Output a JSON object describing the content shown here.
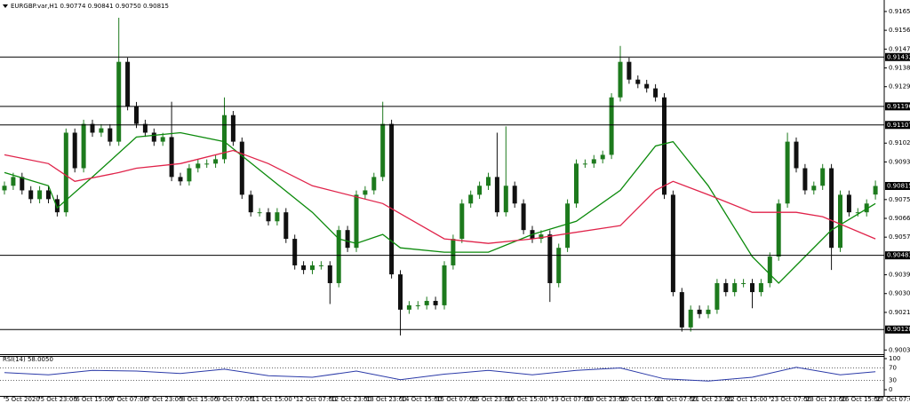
{
  "chart_data": {
    "type": "candlestick",
    "title": "EURGBP.var,H1 0.90774 0.90841 0.90750 0.90815",
    "open": [
      0.90794,
      0.90816,
      0.90858,
      0.90794,
      0.90752,
      0.90794,
      0.90752,
      0.90689,
      0.9107,
      0.909,
      0.91112,
      0.9107,
      0.91091,
      0.91027,
      0.91409,
      0.91197,
      0.91112,
      0.9107,
      0.91027,
      0.91049,
      0.90858,
      0.90837,
      0.909,
      0.90922,
      0.90922,
      0.90943,
      0.91154,
      0.91027,
      0.90773,
      0.90689,
      0.90689,
      0.90646,
      0.90689,
      0.90562,
      0.90435,
      0.90413,
      0.90435,
      0.90435,
      0.9035,
      0.90604,
      0.90519,
      0.90773,
      0.90794,
      0.90858,
      0.91112,
      0.90392,
      0.90223,
      0.90244,
      0.90244,
      0.90265,
      0.90244,
      0.90435,
      0.90562,
      0.90731,
      0.90773,
      0.90816,
      0.90858,
      0.90689,
      0.90816,
      0.90731,
      0.90604,
      0.90562,
      0.90583,
      0.9035,
      0.90519,
      0.90731,
      0.90922,
      0.90922,
      0.90943,
      0.90964,
      0.91239,
      0.91409,
      0.91324,
      0.91303,
      0.91282,
      0.91239,
      0.90773,
      0.90307,
      0.90138,
      0.90223,
      0.90202,
      0.90223,
      0.9035,
      0.90307,
      0.9035,
      0.9035,
      0.90307,
      0.9035,
      0.90477,
      0.90731,
      0.91027,
      0.909,
      0.90794,
      0.90816,
      0.909,
      0.90519,
      0.90773,
      0.90689,
      0.90689,
      0.90774
    ],
    "high": [
      0.90836,
      0.90878,
      0.90878,
      0.90814,
      0.90814,
      0.90814,
      0.90772,
      0.9109,
      0.9109,
      0.91132,
      0.91132,
      0.91111,
      0.91111,
      0.9162,
      0.91429,
      0.91217,
      0.91132,
      0.9109,
      0.91069,
      0.91218,
      0.90878,
      0.9092,
      0.90942,
      0.90942,
      0.90963,
      0.91239,
      0.91174,
      0.91047,
      0.90793,
      0.90709,
      0.90709,
      0.90709,
      0.90709,
      0.90582,
      0.90455,
      0.90455,
      0.90455,
      0.90455,
      0.90624,
      0.90624,
      0.90793,
      0.90814,
      0.90878,
      0.91218,
      0.91132,
      0.90412,
      0.90264,
      0.90264,
      0.90285,
      0.90285,
      0.90455,
      0.90582,
      0.90751,
      0.90793,
      0.90836,
      0.90878,
      0.9107,
      0.911,
      0.90836,
      0.90751,
      0.90624,
      0.90603,
      0.90603,
      0.90539,
      0.90751,
      0.90942,
      0.90942,
      0.90963,
      0.90984,
      0.91259,
      0.91485,
      0.91429,
      0.91344,
      0.91323,
      0.91302,
      0.91259,
      0.90793,
      0.90327,
      0.90243,
      0.90243,
      0.90243,
      0.9037,
      0.9037,
      0.9037,
      0.9037,
      0.9037,
      0.9037,
      0.90497,
      0.90751,
      0.9107,
      0.91047,
      0.9092,
      0.90836,
      0.9092,
      0.9092,
      0.90793,
      0.90793,
      0.90709,
      0.90751,
      0.90841
    ],
    "low": [
      0.90774,
      0.90796,
      0.90774,
      0.90732,
      0.90732,
      0.90732,
      0.90669,
      0.90669,
      0.9088,
      0.9088,
      0.9105,
      0.9105,
      0.91007,
      0.91007,
      0.91177,
      0.91092,
      0.9105,
      0.91007,
      0.91007,
      0.90838,
      0.90817,
      0.90817,
      0.9088,
      0.90902,
      0.90902,
      0.90923,
      0.91007,
      0.90753,
      0.90669,
      0.90669,
      0.90626,
      0.90626,
      0.90542,
      0.90415,
      0.90393,
      0.90393,
      0.90415,
      0.9025,
      0.9033,
      0.90499,
      0.90499,
      0.90753,
      0.90774,
      0.90838,
      0.90372,
      0.901,
      0.90203,
      0.90224,
      0.90224,
      0.90224,
      0.90224,
      0.90415,
      0.90542,
      0.90711,
      0.90753,
      0.90796,
      0.90669,
      0.90669,
      0.90711,
      0.90584,
      0.90542,
      0.90542,
      0.9026,
      0.9033,
      0.90499,
      0.90711,
      0.90902,
      0.90902,
      0.90923,
      0.90944,
      0.91219,
      0.91304,
      0.91283,
      0.91262,
      0.91219,
      0.90753,
      0.90287,
      0.90118,
      0.90118,
      0.90182,
      0.90182,
      0.90203,
      0.90287,
      0.90287,
      0.9033,
      0.9023,
      0.90287,
      0.9033,
      0.90457,
      0.90711,
      0.9088,
      0.90774,
      0.90774,
      0.90796,
      0.90413,
      0.90499,
      0.90669,
      0.90669,
      0.90669,
      0.9075
    ],
    "close": [
      0.90816,
      0.90858,
      0.90794,
      0.90752,
      0.90794,
      0.90752,
      0.90689,
      0.9107,
      0.909,
      0.91112,
      0.9107,
      0.91091,
      0.91027,
      0.91409,
      0.91197,
      0.91112,
      0.9107,
      0.91027,
      0.91049,
      0.90858,
      0.90837,
      0.909,
      0.90922,
      0.90922,
      0.90943,
      0.91154,
      0.91027,
      0.90773,
      0.90689,
      0.90689,
      0.90646,
      0.90689,
      0.90562,
      0.90435,
      0.90413,
      0.90435,
      0.90435,
      0.9035,
      0.90604,
      0.90519,
      0.90773,
      0.90794,
      0.90858,
      0.91112,
      0.90392,
      0.90223,
      0.90244,
      0.90244,
      0.90265,
      0.90244,
      0.90435,
      0.90562,
      0.90731,
      0.90773,
      0.90816,
      0.90858,
      0.90689,
      0.90816,
      0.90731,
      0.90604,
      0.90562,
      0.90583,
      0.9035,
      0.90519,
      0.90731,
      0.90922,
      0.90922,
      0.90943,
      0.90964,
      0.91239,
      0.91409,
      0.91324,
      0.91303,
      0.91282,
      0.91239,
      0.90773,
      0.90307,
      0.90138,
      0.90223,
      0.90202,
      0.90223,
      0.9035,
      0.90307,
      0.9035,
      0.9035,
      0.90307,
      0.9035,
      0.90477,
      0.90731,
      0.91027,
      0.909,
      0.90794,
      0.90816,
      0.909,
      0.90519,
      0.90773,
      0.90689,
      0.90689,
      0.90731,
      0.90815
    ],
    "bull_color": "#1d7a1d",
    "bear_color": "#111111",
    "ylim": [
      0.9001,
      0.91705
    ],
    "yticks": [
      {
        "value": 0.9165,
        "label": "0.91650"
      },
      {
        "value": 0.9156,
        "label": "0.91560"
      },
      {
        "value": 0.9147,
        "label": "0.91470"
      },
      {
        "value": 0.9138,
        "label": "0.91380"
      },
      {
        "value": 0.9129,
        "label": "0.91290"
      },
      {
        "value": 0.9102,
        "label": "0.91020"
      },
      {
        "value": 0.9093,
        "label": "0.90930"
      },
      {
        "value": 0.9075,
        "label": "0.90750"
      },
      {
        "value": 0.9066,
        "label": "0.90660"
      },
      {
        "value": 0.9057,
        "label": "0.90570"
      },
      {
        "value": 0.9039,
        "label": "0.90390"
      },
      {
        "value": 0.903,
        "label": "0.90300"
      },
      {
        "value": 0.9021,
        "label": "0.90210"
      },
      {
        "value": 0.9003,
        "label": "0.90030"
      }
    ],
    "xticks": [
      {
        "value": 0,
        "label": "5 Oct 2020"
      },
      {
        "value": 4,
        "label": "5 Oct 23:00"
      },
      {
        "value": 8,
        "label": "6 Oct 15:00"
      },
      {
        "value": 12,
        "label": "7 Oct 07:00"
      },
      {
        "value": 16,
        "label": "7 Oct 23:00"
      },
      {
        "value": 20,
        "label": "8 Oct 15:00"
      },
      {
        "value": 24,
        "label": "9 Oct 07:00"
      },
      {
        "value": 28,
        "label": "11 Oct 15:00"
      },
      {
        "value": 33,
        "label": "12 Oct 07:00"
      },
      {
        "value": 37,
        "label": "12 Oct 23:00"
      },
      {
        "value": 41,
        "label": "13 Oct 23:00"
      },
      {
        "value": 45,
        "label": "14 Oct 15:00"
      },
      {
        "value": 49,
        "label": "15 Oct 07:00"
      },
      {
        "value": 53,
        "label": "15 Oct 23:00"
      },
      {
        "value": 57,
        "label": "16 Oct 15:00"
      },
      {
        "value": 62,
        "label": "19 Oct 07:00"
      },
      {
        "value": 66,
        "label": "19 Oct 23:00"
      },
      {
        "value": 70,
        "label": "20 Oct 15:00"
      },
      {
        "value": 74,
        "label": "21 Oct 07:00"
      },
      {
        "value": 78,
        "label": "21 Oct 23:00"
      },
      {
        "value": 82,
        "label": "22 Oct 15:00"
      },
      {
        "value": 87,
        "label": "23 Oct 07:00"
      },
      {
        "value": 91,
        "label": "23 Oct 23:00"
      },
      {
        "value": 95,
        "label": "26 Oct 15:00"
      },
      {
        "value": 99,
        "label": "27 Oct 07:00"
      }
    ],
    "levels": [
      0.91432,
      0.91196,
      0.91107,
      0.90483,
      0.90128
    ],
    "last_price": 0.90815,
    "overlays": [
      {
        "color": "#0b8a0b",
        "x": [
          0,
          5,
          6,
          10,
          15,
          20,
          25,
          30,
          35,
          38,
          40,
          43,
          45,
          50,
          55,
          60,
          65,
          70,
          74,
          76,
          80,
          85,
          88,
          90,
          94,
          99
        ],
        "values": [
          0.90879,
          0.90816,
          0.9071,
          0.90858,
          0.91049,
          0.9107,
          0.91027,
          0.90858,
          0.90689,
          0.90562,
          0.9054,
          0.90583,
          0.90519,
          0.90498,
          0.90498,
          0.90583,
          0.90646,
          0.90794,
          0.91006,
          0.91027,
          0.90816,
          0.90477,
          0.9035,
          0.90435,
          0.90604,
          0.90731
        ]
      },
      {
        "color": "#e0234a",
        "x": [
          0,
          5,
          8,
          13,
          15,
          20,
          26,
          30,
          35,
          43,
          50,
          55,
          60,
          70,
          74,
          76,
          80,
          85,
          90,
          93,
          99
        ],
        "values": [
          0.90964,
          0.90922,
          0.90837,
          0.90879,
          0.909,
          0.90922,
          0.90985,
          0.90922,
          0.90816,
          0.90731,
          0.90562,
          0.9054,
          0.90562,
          0.90625,
          0.90794,
          0.90837,
          0.90773,
          0.90689,
          0.90689,
          0.90668,
          0.90562
        ]
      }
    ],
    "rsi": {
      "label": "RSI(14) 58.0050",
      "color": "#2b3aa8",
      "x": [
        0,
        5,
        10,
        15,
        20,
        25,
        30,
        35,
        40,
        45,
        50,
        55,
        60,
        65,
        70,
        75,
        80,
        85,
        90,
        95,
        99
      ],
      "values": [
        55,
        48,
        62,
        60,
        52,
        66,
        45,
        40,
        60,
        32,
        50,
        62,
        48,
        62,
        70,
        35,
        28,
        40,
        72,
        48,
        58
      ],
      "ylim": [
        0,
        100
      ],
      "yticks": [
        100,
        70,
        30,
        0
      ]
    }
  }
}
